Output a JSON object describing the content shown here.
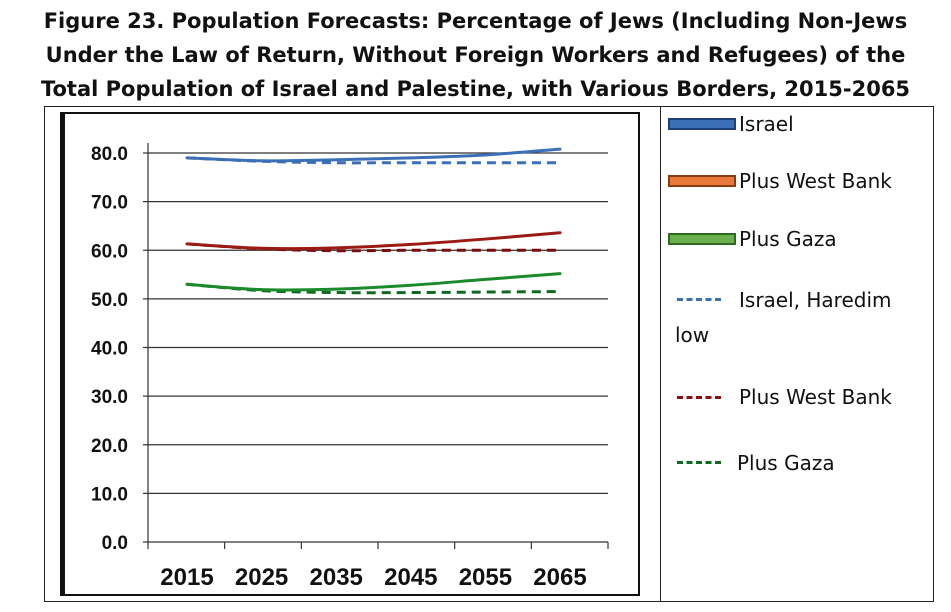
{
  "title_lines": [
    "Figure 23. Population Forecasts: Percentage of Jews (Including Non-Jews",
    "Under the Law of Return, Without Foreign Workers and Refugees) of the",
    "Total Population of Israel and Palestine, with Various Borders, 2015-2065"
  ],
  "chart_data": {
    "type": "line",
    "x": [
      "2015",
      "2025",
      "2035",
      "2045",
      "2055",
      "2065"
    ],
    "ylim": [
      0,
      80
    ],
    "yticks": [
      "0.0",
      "10.0",
      "20.0",
      "30.0",
      "40.0",
      "50.0",
      "60.0",
      "70.0",
      "80.0"
    ],
    "grid": true,
    "legend_position": "right",
    "series": [
      {
        "name": "Israel",
        "style": "solid",
        "color": "#3b6fb6",
        "values": [
          79.0,
          78.4,
          78.6,
          79.0,
          79.6,
          80.8
        ]
      },
      {
        "name": "Plus West Bank",
        "style": "solid",
        "color": "#9a1a14",
        "values": [
          61.3,
          60.4,
          60.5,
          61.2,
          62.3,
          63.6
        ]
      },
      {
        "name": "Plus Gaza",
        "style": "solid",
        "color": "#1a8a2a",
        "values": [
          53.0,
          51.9,
          52.0,
          52.8,
          54.0,
          55.2
        ]
      },
      {
        "name": "Israel, Haredim low",
        "style": "dashed",
        "color": "#3b6fb6",
        "values": [
          79.0,
          78.3,
          78.0,
          78.0,
          78.0,
          78.0
        ]
      },
      {
        "name": "Plus West Bank",
        "style": "dashed",
        "color": "#7a0e0e",
        "values": [
          61.3,
          60.3,
          59.9,
          60.0,
          60.0,
          60.0
        ]
      },
      {
        "name": "Plus Gaza",
        "style": "dashed",
        "color": "#0e6a1e",
        "values": [
          53.0,
          51.7,
          51.3,
          51.3,
          51.4,
          51.5
        ]
      }
    ]
  },
  "legend": [
    {
      "label": "Israel",
      "kind": "bar",
      "fill": "#3b6fb6",
      "border": "#1f3f78"
    },
    {
      "label": "Plus West Bank",
      "kind": "bar",
      "fill": "#e8793a",
      "border": "#8a3a10"
    },
    {
      "label": "Plus Gaza",
      "kind": "bar",
      "fill": "#6ab04c",
      "border": "#2f6a1e"
    },
    {
      "label_line1": "Israel, Haredim",
      "label_line2": "low",
      "kind": "dash",
      "color": "#3b6fb6"
    },
    {
      "label": "Plus West Bank",
      "kind": "dash",
      "color": "#8a1010"
    },
    {
      "label": "Plus Gaza",
      "kind": "dash",
      "color": "#0e6a1e"
    }
  ]
}
